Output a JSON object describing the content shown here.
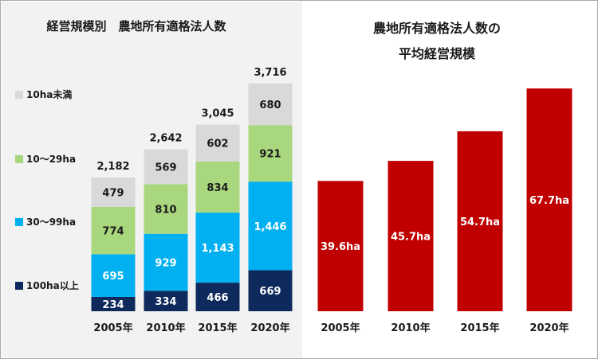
{
  "colors": {
    "lt10": "#d9d9d9",
    "r10_29": "#a9d77e",
    "r30_99": "#00b0f0",
    "ge100": "#0e2a5c",
    "avg_bar": "#c00000",
    "dark_text": "#1a1a1a",
    "light_text": "#ffffff",
    "left_bg": "#f2f2f2"
  },
  "chart_data": [
    {
      "type": "bar",
      "stacked": true,
      "title": "経営規模別　農地所有適格法人数",
      "categories": [
        "2005年",
        "2010年",
        "2015年",
        "2020年"
      ],
      "series": [
        {
          "name": "100ha以上",
          "color_key": "ge100",
          "label_color_key": "light_text",
          "values": [
            234,
            334,
            466,
            669
          ],
          "labels": [
            "234",
            "334",
            "466",
            "669"
          ]
        },
        {
          "name": "30～99ha",
          "color_key": "r30_99",
          "label_color_key": "light_text",
          "values": [
            695,
            929,
            1143,
            1446
          ],
          "labels": [
            "695",
            "929",
            "1,143",
            "1,446"
          ]
        },
        {
          "name": "10～29ha",
          "color_key": "r10_29",
          "label_color_key": "dark_text",
          "values": [
            774,
            810,
            834,
            921
          ],
          "labels": [
            "774",
            "810",
            "834",
            "921"
          ]
        },
        {
          "name": "10ha未満",
          "color_key": "lt10",
          "label_color_key": "dark_text",
          "values": [
            479,
            569,
            602,
            680
          ],
          "labels": [
            "479",
            "569",
            "602",
            "680"
          ]
        }
      ],
      "totals": [
        2182,
        2642,
        3045,
        3716
      ],
      "total_labels": [
        "2,182",
        "2,642",
        "3,045",
        "3,716"
      ],
      "ylim": [
        0,
        4000
      ],
      "legend_position": "left"
    },
    {
      "type": "bar",
      "title": "農地所有適格法人数の",
      "subtitle": "平均経営規模",
      "categories": [
        "2005年",
        "2010年",
        "2015年",
        "2020年"
      ],
      "values": [
        39.6,
        45.7,
        54.7,
        67.7
      ],
      "value_labels": [
        "39.6ha",
        "45.7ha",
        "54.7ha",
        "67.7ha"
      ],
      "ylim": [
        0,
        75
      ]
    }
  ]
}
